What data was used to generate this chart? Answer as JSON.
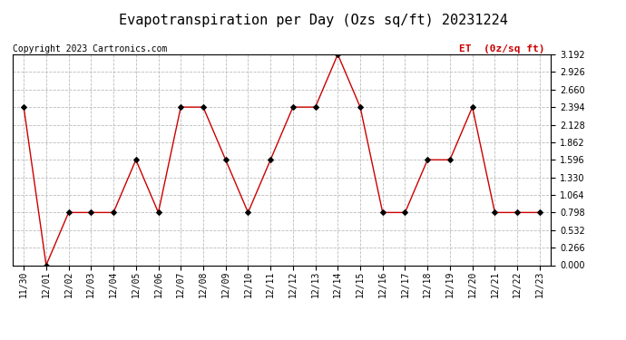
{
  "title": "Evapotranspiration per Day (Ozs sq/ft) 20231224",
  "copyright_text": "Copyright 2023 Cartronics.com",
  "legend_label": "ET  (0z/sq ft)",
  "dates": [
    "11/30",
    "12/01",
    "12/02",
    "12/03",
    "12/04",
    "12/05",
    "12/06",
    "12/07",
    "12/08",
    "12/09",
    "12/10",
    "12/11",
    "12/12",
    "12/13",
    "12/14",
    "12/15",
    "12/16",
    "12/17",
    "12/18",
    "12/19",
    "12/20",
    "12/21",
    "12/22",
    "12/23"
  ],
  "values": [
    2.394,
    0.0,
    0.798,
    0.798,
    0.798,
    1.596,
    0.798,
    2.394,
    2.394,
    1.596,
    0.798,
    1.596,
    2.394,
    2.394,
    3.192,
    2.394,
    0.798,
    0.798,
    1.596,
    1.596,
    2.394,
    0.798,
    0.798,
    0.798
  ],
  "y_ticks": [
    0.0,
    0.266,
    0.532,
    0.798,
    1.064,
    1.33,
    1.596,
    1.862,
    2.128,
    2.394,
    2.66,
    2.926,
    3.192
  ],
  "ymin": 0.0,
  "ymax": 3.192,
  "line_color": "#cc0000",
  "marker_color": "#000000",
  "grid_color": "#bbbbbb",
  "background_color": "#ffffff",
  "title_fontsize": 11,
  "copyright_fontsize": 7,
  "legend_color": "#cc0000",
  "legend_fontsize": 8,
  "tick_fontsize": 7,
  "ylabel_fontsize": 8
}
